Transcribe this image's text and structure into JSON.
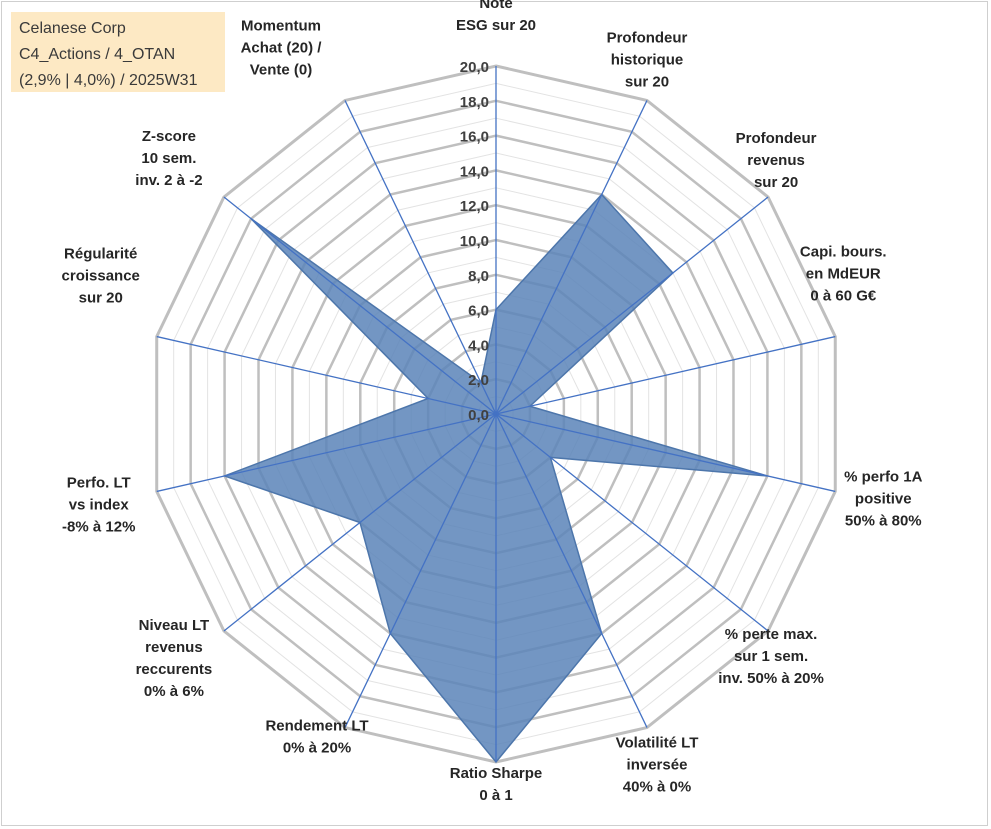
{
  "info": {
    "line1": "Celanese Corp",
    "line2": "C4_Actions / 4_OTAN",
    "line3": "(2,9% | 4,0%) / 2025W31"
  },
  "chart_data": {
    "type": "radar",
    "title": "",
    "range": [
      0,
      20
    ],
    "ticks": [
      "0,0",
      "2,0",
      "4,0",
      "6,0",
      "8,0",
      "10,0",
      "12,0",
      "14,0",
      "16,0",
      "18,0",
      "20,0"
    ],
    "axes": [
      {
        "lines": [
          "Note",
          "ESG sur 20"
        ],
        "value": 6.0
      },
      {
        "lines": [
          "Profondeur",
          "historique",
          "sur 20"
        ],
        "value": 14.0
      },
      {
        "lines": [
          "Profondeur",
          "revenus",
          "sur 20"
        ],
        "value": 13.0
      },
      {
        "lines": [
          "Capi. bours.",
          "en MdEUR",
          "0 à 60 G€"
        ],
        "value": 2.0
      },
      {
        "lines": [
          "% perfo 1A",
          "positive",
          "50% à 80%"
        ],
        "value": 16.0
      },
      {
        "lines": [
          "% perte max.",
          "sur 1 sem.",
          "inv. 50% à 20%"
        ],
        "value": 4.0
      },
      {
        "lines": [
          "Volatilité LT",
          "inversée",
          "40% à 0%"
        ],
        "value": 14.0
      },
      {
        "lines": [
          "Ratio Sharpe",
          "0 à 1"
        ],
        "value": 20.0
      },
      {
        "lines": [
          "Rendement LT",
          "0% à 20%"
        ],
        "value": 14.0
      },
      {
        "lines": [
          "Niveau LT",
          "revenus",
          "reccurents",
          "0% à 6%"
        ],
        "value": 10.0
      },
      {
        "lines": [
          "Perfo. LT",
          "vs index",
          "-8% à 12%"
        ],
        "value": 16.0
      },
      {
        "lines": [
          "Régularité",
          "croissance",
          "sur 20"
        ],
        "value": 4.0
      },
      {
        "lines": [
          "Z-score",
          "10 sem.",
          "inv. 2 à -2"
        ],
        "value": 18.0
      },
      {
        "lines": [
          "Momentum",
          "Achat (20) /",
          "Vente (0)"
        ],
        "value": 2.0
      }
    ],
    "colors": {
      "fill": "#5b84b8",
      "edge": "#4d76ab",
      "spoke": "#4472c4",
      "grid_major": "#bfbfbf",
      "grid_minor": "#e3e3e3"
    }
  }
}
